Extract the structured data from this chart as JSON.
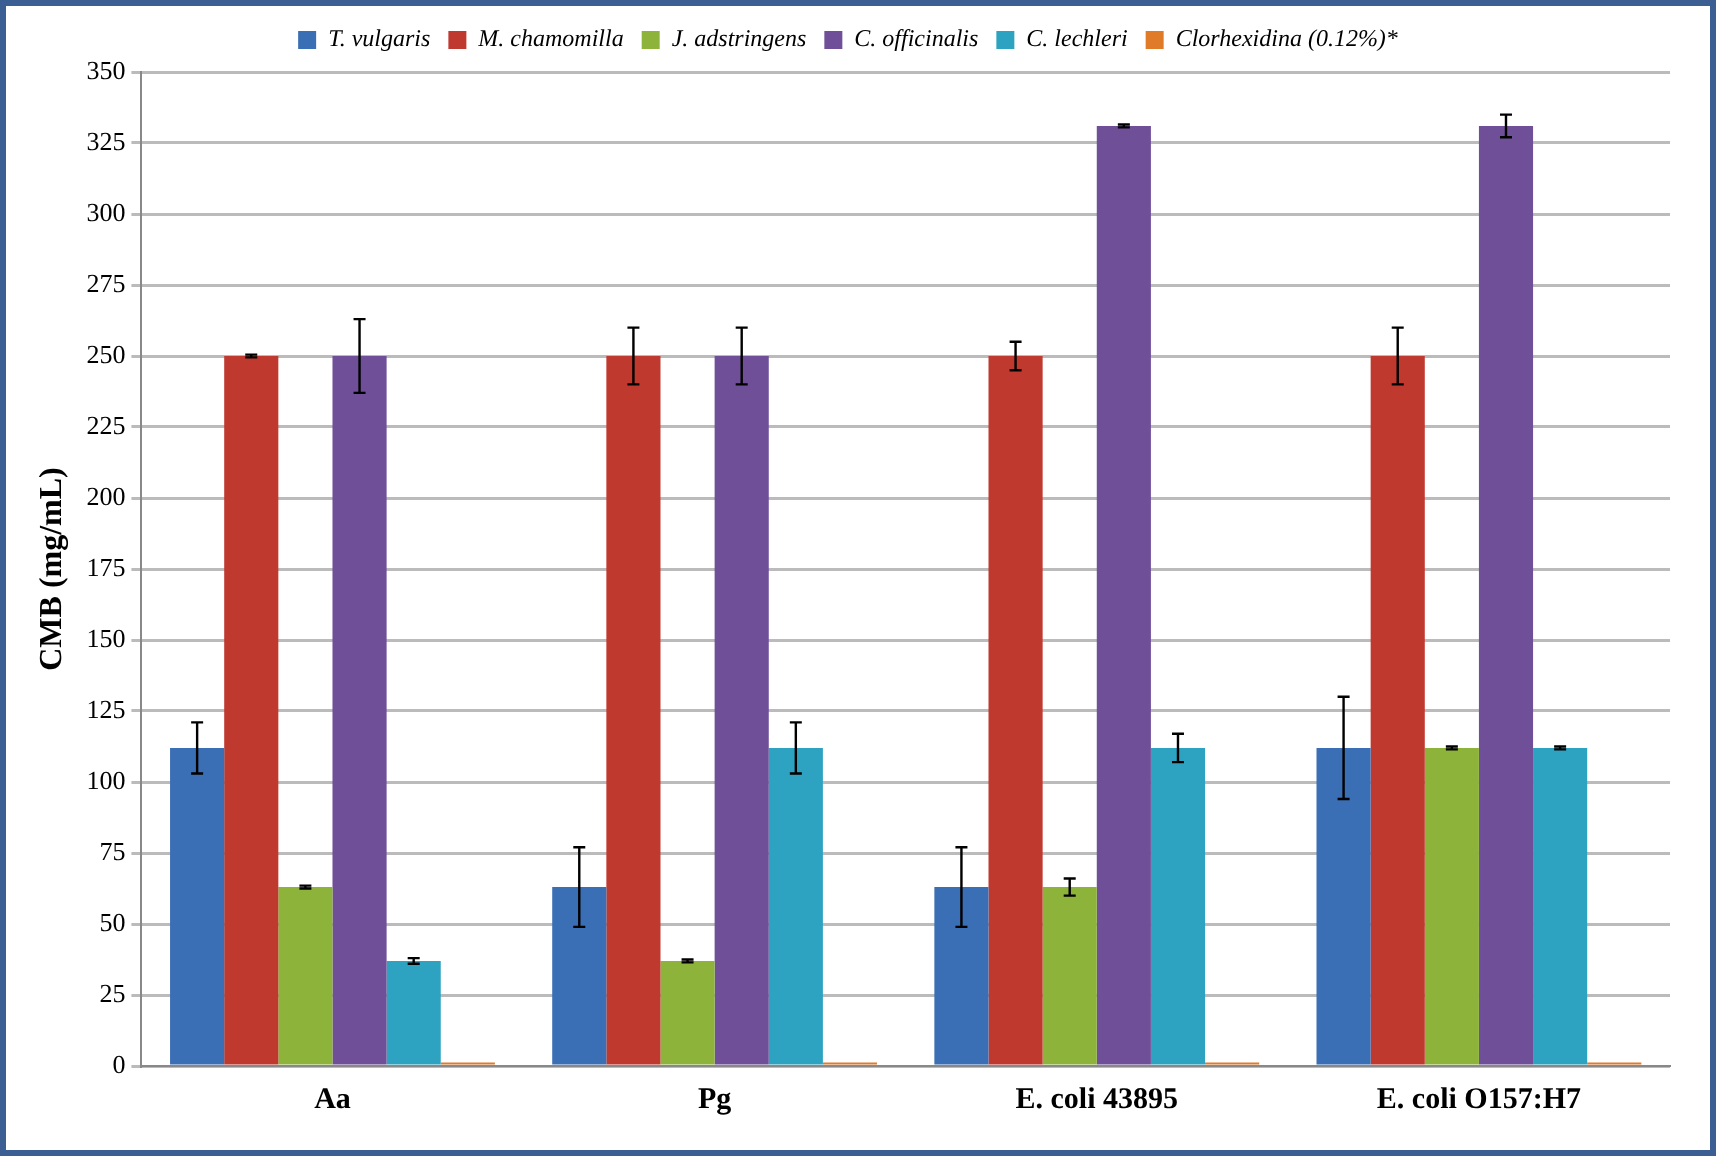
{
  "chart_data": {
    "type": "bar",
    "ylabel": "CMB (mg/mL)",
    "categories": [
      "Aa",
      "Pg",
      "E. coli 43895",
      "E. coli O157:H7"
    ],
    "series": [
      {
        "name": "T. vulgaris",
        "color": "#3a6eb5",
        "values": [
          112,
          63,
          63,
          112
        ],
        "errors": [
          9,
          14,
          14,
          18
        ]
      },
      {
        "name": "M. chamomilla",
        "color": "#c0392f",
        "values": [
          250,
          250,
          250,
          250
        ],
        "errors": [
          0.5,
          10,
          5,
          10
        ]
      },
      {
        "name": "J. adstringens",
        "color": "#8db33a",
        "values": [
          63,
          37,
          63,
          112
        ],
        "errors": [
          0.5,
          0.5,
          3,
          0.5
        ]
      },
      {
        "name": "C. officinalis",
        "color": "#6e4f98",
        "values": [
          250,
          250,
          331,
          331
        ],
        "errors": [
          13,
          10,
          0.5,
          4
        ]
      },
      {
        "name": "C. lechleri",
        "color": "#2ea3c1",
        "values": [
          37,
          112,
          112,
          112
        ],
        "errors": [
          1,
          9,
          5,
          0.5
        ]
      },
      {
        "name": "Clorhexidina (0.12%)*",
        "color": "#e07b2a",
        "values": [
          1.2,
          1.2,
          1.2,
          1.2
        ]
      }
    ],
    "ylim": [
      0,
      350
    ],
    "yticks": [
      0,
      25,
      50,
      75,
      100,
      125,
      150,
      175,
      200,
      225,
      250,
      275,
      300,
      325,
      350
    ],
    "grid": "y",
    "legend": "top"
  }
}
